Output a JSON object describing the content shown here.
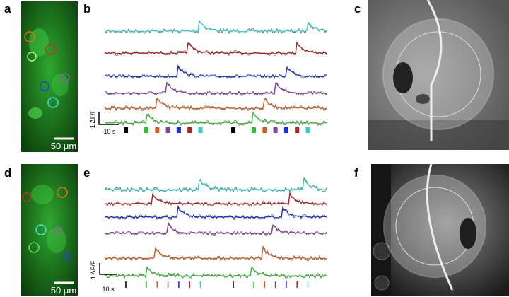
{
  "top": {
    "image_panel": {
      "label": "a",
      "scale_bar": "50 μm"
    },
    "traces_panel": {
      "label": "b",
      "scale_y": "1 ΔF/F",
      "scale_x": "10 s"
    },
    "photo_panel": {
      "label": "c"
    }
  },
  "bottom": {
    "image_panel": {
      "label": "d",
      "scale_bar": "50 μm"
    },
    "traces_panel": {
      "label": "e",
      "scale_y": "1 ΔF/F",
      "scale_x": "10 s"
    },
    "photo_panel": {
      "label": "f"
    }
  }
}
